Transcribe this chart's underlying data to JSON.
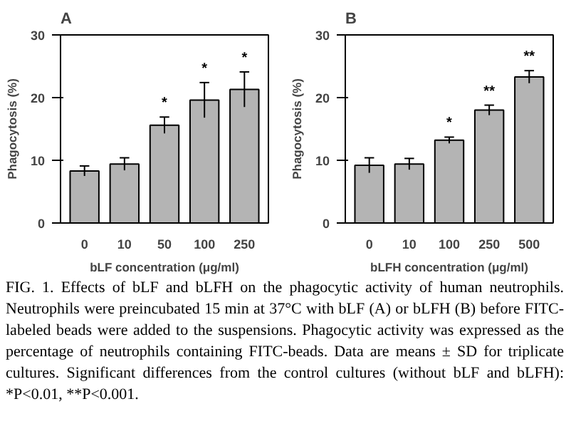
{
  "chart_data": [
    {
      "type": "bar",
      "title": "A",
      "xlabel": "bLF concentration (μg/ml)",
      "ylabel": "Phagocytosis (%)",
      "categories": [
        "0",
        "10",
        "50",
        "100",
        "250"
      ],
      "series": [
        {
          "color": "#b4b4b4",
          "values": [
            8.3,
            9.4,
            15.6,
            19.6,
            21.3
          ],
          "errors": [
            0.8,
            1.0,
            1.3,
            2.8,
            2.8
          ]
        }
      ],
      "ylim": [
        0,
        30
      ],
      "yticks": [
        0,
        10,
        20,
        30
      ],
      "grid": false,
      "annotations": [
        {
          "text": "*",
          "x": "50",
          "y": 15.6
        },
        {
          "text": "*",
          "x": "100",
          "y": 19.6
        },
        {
          "text": "*",
          "x": "250",
          "y": 21.3
        }
      ]
    },
    {
      "type": "bar",
      "title": "B",
      "xlabel": "bLFH concentration (μg/ml)",
      "ylabel": "Phagocytosis (%)",
      "categories": [
        "0",
        "10",
        "100",
        "250",
        "500"
      ],
      "series": [
        {
          "color": "#b4b4b4",
          "values": [
            9.2,
            9.4,
            13.2,
            18.0,
            23.3
          ],
          "errors": [
            1.2,
            0.9,
            0.5,
            0.8,
            1.0
          ]
        }
      ],
      "ylim": [
        0,
        30
      ],
      "yticks": [
        0,
        10,
        20,
        30
      ],
      "grid": false,
      "annotations": [
        {
          "text": "*",
          "x": "100",
          "y": 13.2
        },
        {
          "text": "**",
          "x": "250",
          "y": 18.0
        },
        {
          "text": "**",
          "x": "500",
          "y": 23.3
        },
        "FIG. 1.  Effects of bLF and bLFH on the phagocytic activity of human neutrophils. Neutrophils were preincubated 15 min at 37°C with bLF (A) or bLFH (B) before FITC-labeled beads were added to the suspensions. Phagocytic activity was expressed as the percentage of neutrophils containing FITC-beads. Data are means ± SD for triplicate cultures. Significant differences from the control cultures (without bLF and bLFH): *P<0.01, **P<0.001."
      ]
    }
  ]
}
